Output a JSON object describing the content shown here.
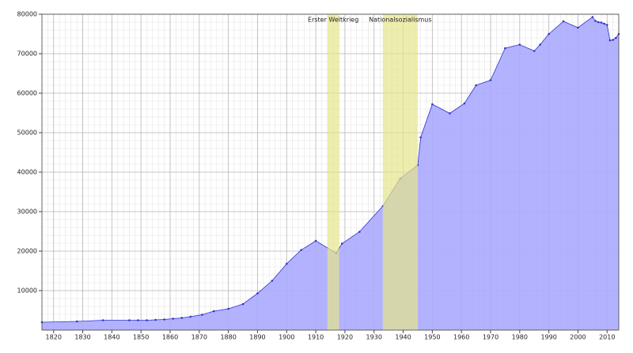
{
  "chart_data": {
    "type": "area",
    "x": [
      1816,
      1828,
      1837,
      1846,
      1849,
      1852,
      1855,
      1858,
      1861,
      1864,
      1867,
      1871,
      1875,
      1880,
      1885,
      1890,
      1895,
      1900,
      1905,
      1910,
      1917,
      1919,
      1925,
      1933,
      1939,
      1945,
      1946,
      1950,
      1956,
      1961,
      1965,
      1970,
      1975,
      1980,
      1985,
      1987,
      1990,
      1995,
      2000,
      2005,
      2006,
      2007,
      2008,
      2009,
      2010,
      2011,
      2012,
      2013,
      2014
    ],
    "series": [
      {
        "color": "#3333cc",
        "fill": "#aaaaff",
        "values": [
          2000,
          2200,
          2500,
          2500,
          2500,
          2500,
          2600,
          2700,
          2900,
          3100,
          3400,
          3900,
          4800,
          5400,
          6600,
          9300,
          12500,
          16800,
          20300,
          22600,
          19500,
          21900,
          24900,
          31400,
          38400,
          41800,
          48800,
          57200,
          54900,
          57400,
          62000,
          63300,
          71400,
          72300,
          70700,
          72300,
          75000,
          78200,
          76600,
          79300,
          78300,
          78000,
          77900,
          77600,
          77300,
          73400,
          73500,
          74000,
          75000
        ]
      }
    ],
    "spans": [
      {
        "label": "Erster Weltkrieg",
        "start": 1914,
        "end": 1918,
        "color": "#e6e68a"
      },
      {
        "label": "Nationalsozialismus",
        "start": 1933,
        "end": 1945,
        "color": "#e6e68a"
      }
    ],
    "xlim": [
      1816,
      2014
    ],
    "ylim": [
      0,
      80000
    ],
    "xticks": [
      1820,
      1830,
      1840,
      1850,
      1860,
      1870,
      1880,
      1890,
      1900,
      1910,
      1920,
      1930,
      1940,
      1950,
      1960,
      1970,
      1980,
      1990,
      2000,
      2010
    ],
    "yticks": [
      10000,
      20000,
      30000,
      40000,
      50000,
      60000,
      70000,
      80000
    ],
    "grid": true,
    "x_minor_step": 2,
    "y_minor_step": 2000
  }
}
